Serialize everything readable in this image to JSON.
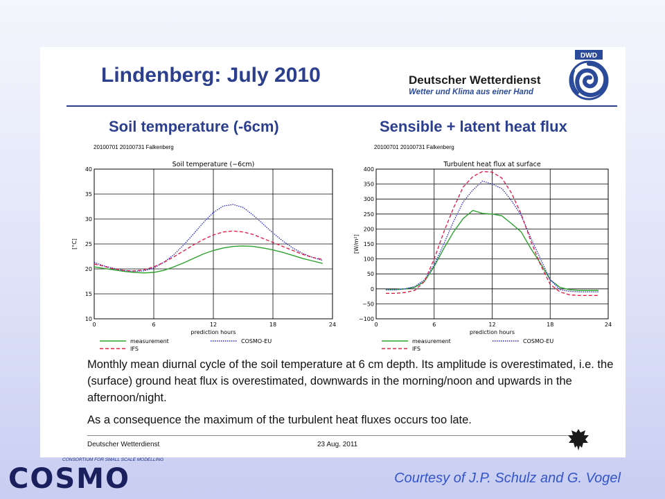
{
  "slide": {
    "title": "Lindenberg: July 2010",
    "org_name": "Deutscher Wetterdienst",
    "org_tagline": "Wetter und Klima aus einer Hand",
    "org_badge": "DWD",
    "footer_org": "Deutscher Wetterdienst",
    "footer_date": "23 Aug. 2011"
  },
  "left_panel": {
    "heading": "Soil temperature (-6cm)",
    "run_label": "20100701 20100731 Falkenberg"
  },
  "right_panel": {
    "heading": "Sensible + latent heat flux",
    "run_label": "20100701 20100731 Falkenberg"
  },
  "body": {
    "paragraph1": "Monthly mean diurnal cycle of the soil temperature at 6 cm depth. Its amplitude is overestimated, i.e. the (surface) ground heat flux is overestimated, downwards in the morning/noon and upwards in the afternoon/night.",
    "paragraph2": "As a consequence the maximum of the turbulent heat fluxes occurs too late."
  },
  "cosmo": {
    "consortium": "CONSORTIUM FOR SMALL SCALE MODELLING",
    "word": "COSMO"
  },
  "courtesy": "Courtesy of J.P. Schulz and G. Vogel",
  "colors": {
    "title_blue": "#2b3f8e",
    "measurement": "#2ca02c",
    "cosmo_eu": "#2020d0",
    "ifs": "#e0204a"
  },
  "chart_data": [
    {
      "type": "line",
      "title": "Soil temperature (−6cm)",
      "xlabel": "prediction hours",
      "ylabel": "[°C]",
      "xlim": [
        0,
        24
      ],
      "ylim": [
        10,
        40
      ],
      "xticks": [
        0,
        6,
        12,
        18,
        24
      ],
      "yticks": [
        10,
        15,
        20,
        25,
        30,
        35,
        40
      ],
      "grid": true,
      "legend_position": "bottom",
      "series": [
        {
          "name": "measurement",
          "color": "#2ca02c",
          "dash": "solid",
          "x": [
            0,
            1,
            2,
            3,
            4,
            5,
            6,
            7,
            8,
            9,
            10,
            11,
            12,
            13,
            14,
            15,
            16,
            17,
            18,
            19,
            20,
            21,
            22,
            23
          ],
          "y": [
            20.4,
            20.1,
            19.8,
            19.5,
            19.3,
            19.2,
            19.3,
            19.7,
            20.4,
            21.2,
            22.1,
            23.0,
            23.7,
            24.2,
            24.5,
            24.6,
            24.5,
            24.2,
            23.8,
            23.3,
            22.7,
            22.1,
            21.6,
            21.1
          ]
        },
        {
          "name": "COSMO-EU",
          "color": "#2020d0",
          "dash": "dotted",
          "x": [
            0,
            1,
            2,
            3,
            4,
            5,
            6,
            7,
            8,
            9,
            10,
            11,
            12,
            13,
            14,
            15,
            16,
            17,
            18,
            19,
            20,
            21,
            22,
            23
          ],
          "y": [
            21.3,
            20.6,
            20.1,
            19.7,
            19.5,
            19.6,
            20.2,
            21.3,
            22.8,
            24.8,
            27.0,
            29.3,
            31.3,
            32.6,
            32.9,
            32.3,
            30.8,
            29.0,
            27.2,
            25.6,
            24.2,
            23.1,
            22.3,
            21.7
          ]
        },
        {
          "name": "IFS",
          "color": "#e0204a",
          "dash": "dashed",
          "x": [
            0,
            1,
            2,
            3,
            4,
            5,
            6,
            7,
            8,
            9,
            10,
            11,
            12,
            13,
            14,
            15,
            16,
            17,
            18,
            19,
            20,
            21,
            22,
            23
          ],
          "y": [
            21.0,
            20.5,
            20.0,
            19.7,
            19.6,
            19.8,
            20.4,
            21.3,
            22.4,
            23.6,
            24.8,
            25.9,
            26.8,
            27.4,
            27.6,
            27.4,
            26.9,
            26.1,
            25.3,
            24.5,
            23.7,
            22.9,
            22.3,
            21.9
          ]
        }
      ]
    },
    {
      "type": "line",
      "title": "Turbulent heat flux at surface",
      "xlabel": "prediction hours",
      "ylabel": "[W/m²]",
      "xlim": [
        0,
        24
      ],
      "ylim": [
        -100,
        400
      ],
      "xticks": [
        0,
        6,
        12,
        18,
        24
      ],
      "yticks": [
        -100,
        -50,
        0,
        50,
        100,
        150,
        200,
        250,
        300,
        350,
        400
      ],
      "grid": true,
      "legend_position": "bottom",
      "series": [
        {
          "name": "measurement",
          "color": "#2ca02c",
          "dash": "solid",
          "x": [
            1,
            2,
            3,
            4,
            5,
            6,
            7,
            8,
            9,
            10,
            11,
            12,
            13,
            14,
            15,
            16,
            17,
            18,
            19,
            20,
            21,
            22,
            23
          ],
          "y": [
            -2,
            -2,
            0,
            5,
            25,
            75,
            135,
            190,
            235,
            262,
            252,
            250,
            244,
            218,
            190,
            135,
            85,
            30,
            5,
            -3,
            -5,
            -5,
            -5
          ]
        },
        {
          "name": "COSMO-EU",
          "color": "#2020d0",
          "dash": "dotted",
          "x": [
            1,
            2,
            3,
            4,
            5,
            6,
            7,
            8,
            9,
            10,
            11,
            12,
            13,
            14,
            15,
            16,
            17,
            18,
            19,
            20,
            21,
            22,
            23
          ],
          "y": [
            -3,
            -3,
            0,
            8,
            30,
            80,
            150,
            225,
            290,
            330,
            360,
            350,
            335,
            295,
            245,
            170,
            100,
            30,
            -2,
            -8,
            -10,
            -10,
            -10
          ]
        },
        {
          "name": "IFS",
          "color": "#e0204a",
          "dash": "dashed",
          "x": [
            1,
            2,
            3,
            4,
            5,
            6,
            7,
            8,
            9,
            10,
            11,
            12,
            13,
            14,
            15,
            16,
            17,
            18,
            19,
            20,
            21,
            22,
            23
          ],
          "y": [
            -15,
            -15,
            -12,
            -5,
            25,
            100,
            190,
            270,
            340,
            375,
            392,
            390,
            370,
            320,
            250,
            160,
            80,
            15,
            -10,
            -20,
            -22,
            -22,
            -22
          ]
        }
      ]
    }
  ]
}
